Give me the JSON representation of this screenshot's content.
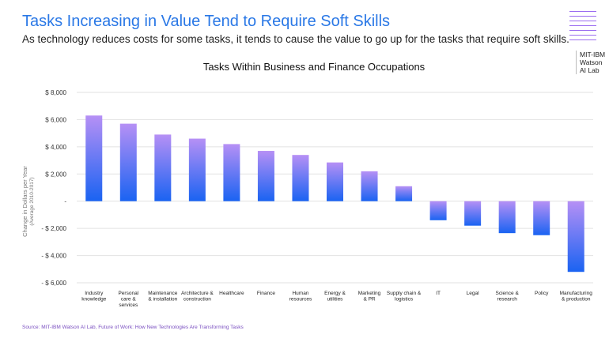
{
  "header": {
    "title": "Tasks Increasing in Value Tend to Require Soft Skills",
    "subtitle": "As technology reduces costs for some tasks, it tends to cause the value to go up for the tasks that require soft skills."
  },
  "logo": {
    "lines": [
      "MIT-IBM",
      "Watson",
      "AI Lab"
    ],
    "accent": "#9b6cf0"
  },
  "footer": {
    "source": "Source: MIT-IBM Watson AI Lab, Future of Work: How New Technologies Are Transforming Tasks"
  },
  "chart_data": {
    "type": "bar",
    "title": "Tasks Within Business and Finance Occupations",
    "ylabel": "Change in Dollars per Year",
    "ylabel_sub": "(Average 2010-2017)",
    "ylim": [
      -6000,
      8000
    ],
    "yticks": [
      8000,
      6000,
      4000,
      2000,
      0,
      -2000,
      -4000,
      -6000
    ],
    "ytick_labels": [
      "$ 8,000",
      "$ 6,000",
      "$ 4,000",
      "$ 2,000",
      "-",
      "- $ 2,000",
      "- $ 4,000",
      "- $ 6,000"
    ],
    "grid": true,
    "colors": {
      "bar_top": "#b690f5",
      "bar_bottom": "#1a63f2"
    },
    "categories": [
      [
        "Industry",
        "knowledge"
      ],
      [
        "Personal",
        "care &",
        "services"
      ],
      [
        "Maintenance",
        "& installation"
      ],
      [
        "Architecture &",
        "construction"
      ],
      [
        "Healthcare"
      ],
      [
        "Finance"
      ],
      [
        "Human",
        "resources"
      ],
      [
        "Energy &",
        "utilities"
      ],
      [
        "Marketing",
        "& PR"
      ],
      [
        "Supply chain &",
        "logistics"
      ],
      [
        "IT"
      ],
      [
        "Legal"
      ],
      [
        "Science &",
        "research"
      ],
      [
        "Policy"
      ],
      [
        "Manufacturing",
        "& production"
      ]
    ],
    "values": [
      6300,
      5700,
      4900,
      4600,
      4200,
      3700,
      3400,
      2850,
      2200,
      1100,
      -1400,
      -1800,
      -2350,
      -2500,
      -5200
    ]
  }
}
